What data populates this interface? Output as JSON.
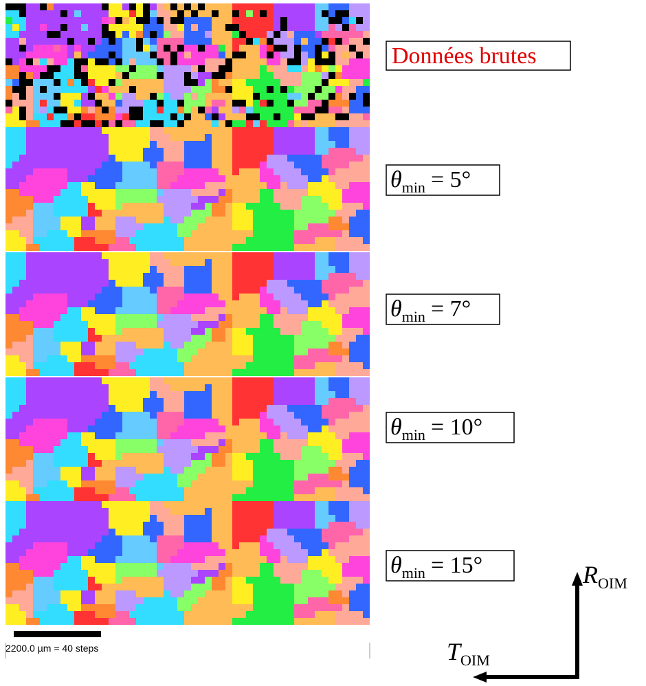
{
  "figure": {
    "raw_label": "Données brutes",
    "panels": [
      {
        "symbol": "θ",
        "subscript": "min",
        "rhs": "= 5°"
      },
      {
        "symbol": "θ",
        "subscript": "min",
        "rhs": "= 7°"
      },
      {
        "symbol": "θ",
        "subscript": "min",
        "rhs": "= 10°"
      },
      {
        "symbol": "θ",
        "subscript": "min",
        "rhs": "= 15°"
      }
    ],
    "scale_text": "2200.0 µm = 40 steps",
    "axis_r": {
      "symbol": "R",
      "subscript": "OIM"
    },
    "axis_t": {
      "symbol": "T",
      "subscript": "OIM"
    }
  }
}
